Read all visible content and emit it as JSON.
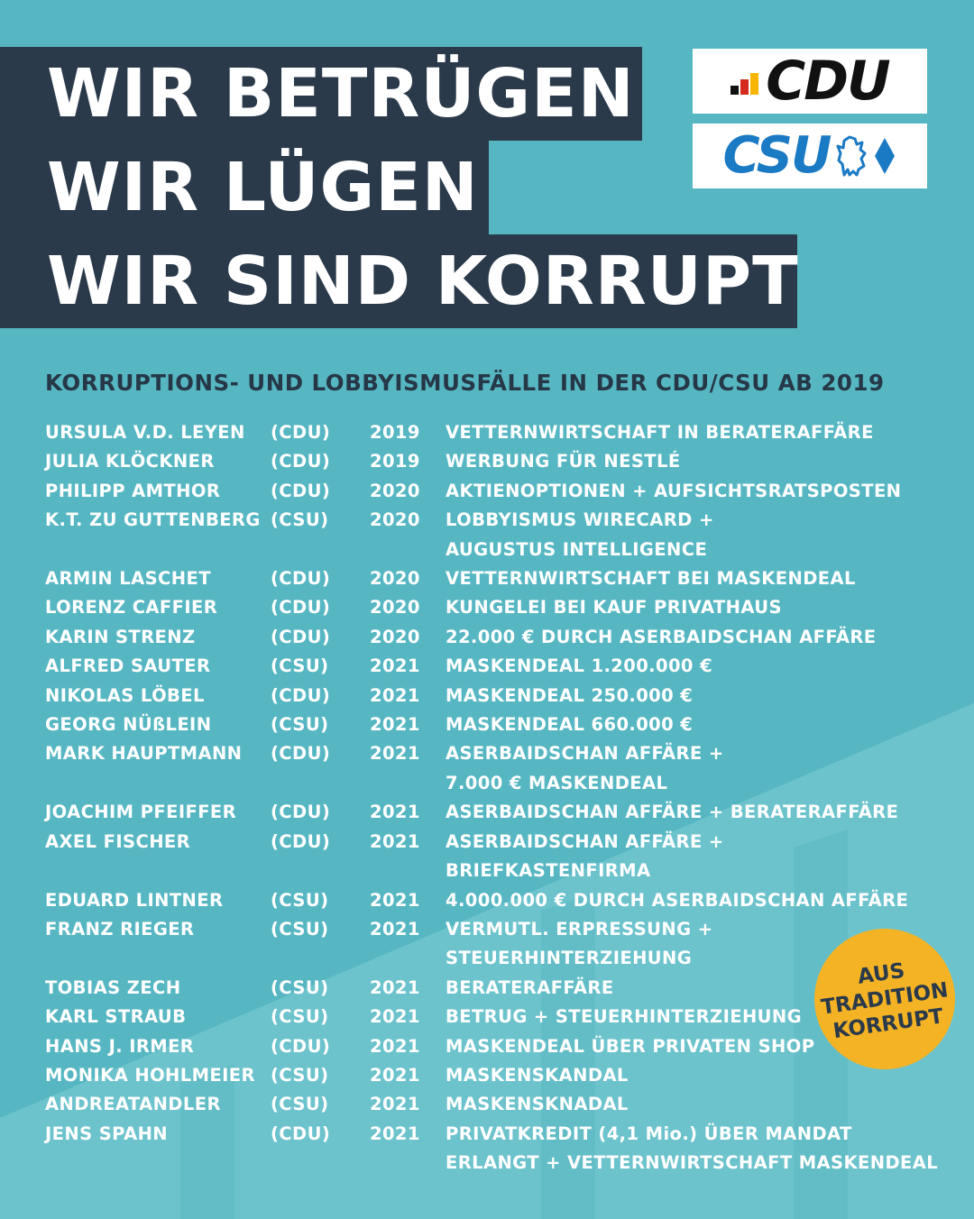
{
  "headline": [
    "WIR BETRÜGEN",
    "WIR LÜGEN",
    "WIR SIND KORRUPT"
  ],
  "logos": {
    "cdu": "CDU",
    "csu": "CSU",
    "cdu_bar_colors": [
      "#111111",
      "#d52b1e",
      "#f7b500"
    ],
    "csu_color": "#1a7ac4"
  },
  "subtitle": "KORRUPTIONS- UND LOBBYISMUSFÄLLE IN DER CDU/CSU AB 2019",
  "cases": [
    {
      "name": "URSULA V.D. LEYEN",
      "party": "(CDU)",
      "year": "2019",
      "desc": "VETTERNWIRTSCHAFT IN BERATERAFFÄRE",
      "desc2": ""
    },
    {
      "name": "JULIA KLÖCKNER",
      "party": "(CDU)",
      "year": "2019",
      "desc": "WERBUNG FÜR NESTLÉ",
      "desc2": ""
    },
    {
      "name": "PHILIPP AMTHOR",
      "party": "(CDU)",
      "year": "2020",
      "desc": "AKTIENOPTIONEN + AUFSICHTSRATSPOSTEN",
      "desc2": ""
    },
    {
      "name": "K.T. ZU GUTTENBERG",
      "party": "(CSU)",
      "year": "2020",
      "desc": "LOBBYISMUS WIRECARD +",
      "desc2": "AUGUSTUS INTELLIGENCE"
    },
    {
      "name": "ARMIN LASCHET",
      "party": "(CDU)",
      "year": "2020",
      "desc": "VETTERNWIRTSCHAFT BEI MASKENDEAL",
      "desc2": ""
    },
    {
      "name": "LORENZ CAFFIER",
      "party": "(CDU)",
      "year": "2020",
      "desc": "KUNGELEI BEI KAUF PRIVATHAUS",
      "desc2": ""
    },
    {
      "name": "KARIN STRENZ",
      "party": "(CDU)",
      "year": "2020",
      "desc": "22.000 € DURCH ASERBAIDSCHAN AFFÄRE",
      "desc2": ""
    },
    {
      "name": "ALFRED SAUTER",
      "party": "(CSU)",
      "year": "2021",
      "desc": "MASKENDEAL 1.200.000 €",
      "desc2": ""
    },
    {
      "name": "NIKOLAS LÖBEL",
      "party": "(CDU)",
      "year": "2021",
      "desc": "MASKENDEAL 250.000 €",
      "desc2": ""
    },
    {
      "name": "GEORG NÜßLEIN",
      "party": "(CSU)",
      "year": "2021",
      "desc": "MASKENDEAL 660.000 €",
      "desc2": ""
    },
    {
      "name": "MARK HAUPTMANN",
      "party": "(CDU)",
      "year": "2021",
      "desc": "ASERBAIDSCHAN AFFÄRE +",
      "desc2": "7.000 € MASKENDEAL"
    },
    {
      "name": "JOACHIM PFEIFFER",
      "party": "(CDU)",
      "year": "2021",
      "desc": "ASERBAIDSCHAN AFFÄRE + BERATERAFFÄRE",
      "desc2": ""
    },
    {
      "name": "AXEL FISCHER",
      "party": "(CDU)",
      "year": "2021",
      "desc": "ASERBAIDSCHAN AFFÄRE +",
      "desc2": "BRIEFKASTENFIRMA"
    },
    {
      "name": "EDUARD LINTNER",
      "party": "(CSU)",
      "year": "2021",
      "desc": "4.000.000 € DURCH ASERBAIDSCHAN AFFÄRE",
      "desc2": ""
    },
    {
      "name": "FRANZ RIEGER",
      "party": "(CSU)",
      "year": "2021",
      "desc": "VERMUTL. ERPRESSUNG +",
      "desc2": "STEUERHINTERZIEHUNG"
    },
    {
      "name": "TOBIAS ZECH",
      "party": "(CSU)",
      "year": "2021",
      "desc": "BERATERAFFÄRE",
      "desc2": ""
    },
    {
      "name": "KARL STRAUB",
      "party": "(CSU)",
      "year": "2021",
      "desc": "BETRUG + STEUERHINTERZIEHUNG",
      "desc2": ""
    },
    {
      "name": "HANS J. IRMER",
      "party": "(CDU)",
      "year": "2021",
      "desc": "MASKENDEAL ÜBER PRIVATEN SHOP",
      "desc2": ""
    },
    {
      "name": "MONIKA HOHLMEIER",
      "party": "(CSU)",
      "year": "2021",
      "desc": "MASKENSKANDAL",
      "desc2": ""
    },
    {
      "name": "ANDREATANDLER",
      "party": "(CSU)",
      "year": "2021",
      "desc": "MASKENSKNADAL",
      "desc2": ""
    },
    {
      "name": "JENS SPAHN",
      "party": "(CDU)",
      "year": "2021",
      "desc": "PRIVATKREDIT (4,1 Mio.) ÜBER MANDAT",
      "desc2": "ERLANGT + VETTERNWIRTSCHAFT MASKENDEAL"
    }
  ],
  "badge": [
    "AUS",
    "TRADITION",
    "KORRUPT"
  ],
  "colors": {
    "background": "#56b7c2",
    "headline_bg": "#2a3a4a",
    "badge": "#f4b325"
  }
}
